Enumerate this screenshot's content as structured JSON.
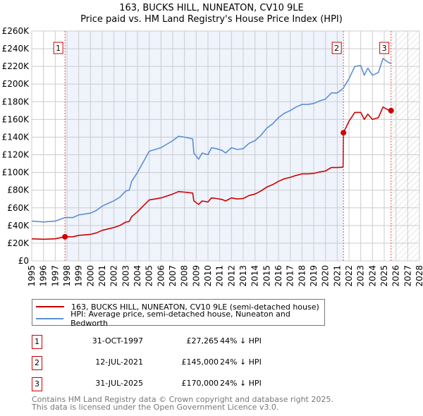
{
  "title_line1": "163, BUCKS HILL, NUNEATON, CV10 9LE",
  "title_line2": "Price paid vs. HM Land Registry's House Price Index (HPI)",
  "colors": {
    "property": "#cc0000",
    "hpi": "#5b8fd4",
    "shade": "#eef3fc",
    "grid": "#cccccc"
  },
  "chart_data": {
    "type": "line",
    "title": "Price paid vs. HM Land Registry's House Price Index (HPI)",
    "xlim": [
      1995,
      2028
    ],
    "ylim": [
      0,
      260000
    ],
    "x_ticks": [
      "1995",
      "1996",
      "1997",
      "1998",
      "1999",
      "2000",
      "2001",
      "2002",
      "2003",
      "2004",
      "2005",
      "2006",
      "2007",
      "2008",
      "2009",
      "2010",
      "2011",
      "2012",
      "2013",
      "2014",
      "2015",
      "2016",
      "2017",
      "2018",
      "2019",
      "2020",
      "2021",
      "2022",
      "2023",
      "2024",
      "2025",
      "2026",
      "2027",
      "2028"
    ],
    "y_ticks": [
      {
        "value": 0,
        "label": "£0"
      },
      {
        "value": 20000,
        "label": "£20K"
      },
      {
        "value": 40000,
        "label": "£40K"
      },
      {
        "value": 60000,
        "label": "£60K"
      },
      {
        "value": 80000,
        "label": "£80K"
      },
      {
        "value": 100000,
        "label": "£100K"
      },
      {
        "value": 120000,
        "label": "£120K"
      },
      {
        "value": 140000,
        "label": "£140K"
      },
      {
        "value": 160000,
        "label": "£160K"
      },
      {
        "value": 180000,
        "label": "£180K"
      },
      {
        "value": 200000,
        "label": "£200K"
      },
      {
        "value": 220000,
        "label": "£220K"
      },
      {
        "value": 240000,
        "label": "£240K"
      },
      {
        "value": 260000,
        "label": "£260K"
      }
    ],
    "grid": true,
    "series": [
      {
        "name": "163, BUCKS HILL, NUNEATON, CV10 9LE (semi-detached house)",
        "color": "#cc0000",
        "x": [
          1995,
          1996,
          1997,
          1997.83,
          1998.5,
          1999,
          2000,
          2000.5,
          2001,
          2001.5,
          2002,
          2002.5,
          2003,
          2003.3,
          2003.5,
          2004,
          2004.5,
          2005,
          2005.5,
          2006,
          2006.5,
          2007,
          2007.5,
          2008,
          2008.7,
          2008.8,
          2009.2,
          2009.5,
          2010,
          2010.3,
          2010.7,
          2011.2,
          2011.5,
          2012,
          2012.5,
          2013,
          2013.5,
          2014,
          2014.5,
          2015,
          2015.5,
          2016,
          2016.5,
          2017,
          2017.5,
          2018,
          2018.5,
          2019,
          2019.5,
          2020,
          2020.5,
          2021,
          2021.5,
          2021.53,
          2022,
          2022.5,
          2023,
          2023.3,
          2023.6,
          2024,
          2024.5,
          2024.9,
          2025.3,
          2025.58
        ],
        "y": [
          25000,
          24500,
          25000,
          27265,
          27300,
          28900,
          30000,
          31700,
          34500,
          36100,
          37800,
          40000,
          43900,
          44500,
          50000,
          55600,
          62300,
          68900,
          70000,
          71200,
          73400,
          75600,
          78400,
          77800,
          76700,
          67800,
          63900,
          67800,
          66700,
          71200,
          70600,
          69500,
          67800,
          71200,
          70000,
          70600,
          73900,
          75600,
          79000,
          83400,
          86200,
          90000,
          92900,
          94500,
          96700,
          98400,
          98400,
          99000,
          100600,
          101700,
          105600,
          105600,
          106000,
          145000,
          158000,
          168000,
          168000,
          160000,
          166000,
          160000,
          162000,
          174000,
          171000,
          170000
        ]
      },
      {
        "name": "HPI: Average price, semi-detached house, Nuneaton and Bedworth",
        "color": "#5b8fd4",
        "x": [
          1995,
          1996,
          1997,
          1997.83,
          1998.5,
          1999,
          2000,
          2000.5,
          2001,
          2001.5,
          2002,
          2002.5,
          2003,
          2003.3,
          2003.5,
          2004,
          2004.5,
          2005,
          2005.5,
          2006,
          2006.5,
          2007,
          2007.5,
          2008,
          2008.7,
          2008.8,
          2009.2,
          2009.5,
          2010,
          2010.3,
          2010.7,
          2011.2,
          2011.5,
          2012,
          2012.5,
          2013,
          2013.5,
          2014,
          2014.5,
          2015,
          2015.5,
          2016,
          2016.5,
          2017,
          2017.5,
          2018,
          2018.5,
          2019,
          2019.5,
          2020,
          2020.5,
          2021,
          2021.5,
          2022,
          2022.5,
          2023,
          2023.3,
          2023.6,
          2024,
          2024.5,
          2024.9,
          2025.3,
          2025.58
        ],
        "y": [
          45000,
          44000,
          45000,
          49000,
          49000,
          52000,
          54000,
          57000,
          62000,
          65000,
          68000,
          72000,
          79000,
          80000,
          90000,
          100000,
          112000,
          124000,
          126000,
          128000,
          132000,
          136000,
          141000,
          140000,
          138000,
          122000,
          115000,
          122000,
          120000,
          128000,
          127000,
          125000,
          122000,
          128000,
          126000,
          127000,
          133000,
          136000,
          142000,
          150000,
          155000,
          162000,
          167000,
          170000,
          174000,
          177000,
          177000,
          178000,
          181000,
          183000,
          190000,
          190000,
          195000,
          206000,
          220000,
          221000,
          210000,
          218000,
          210000,
          213000,
          229000,
          225000,
          223000
        ]
      }
    ],
    "sales": [
      {
        "label": "1",
        "x": 1997.83,
        "y": 27265
      },
      {
        "label": "2",
        "x": 2021.53,
        "y": 145000
      },
      {
        "label": "3",
        "x": 2025.58,
        "y": 170000
      }
    ],
    "legend_placement": "bottom"
  },
  "legend": {
    "property": "163, BUCKS HILL, NUNEATON, CV10 9LE (semi-detached house)",
    "hpi": "HPI: Average price, semi-detached house, Nuneaton and Bedworth"
  },
  "transactions": [
    {
      "num": "1",
      "date": "31-OCT-1997",
      "price": "£27,265",
      "hpi": "44% ↓ HPI"
    },
    {
      "num": "2",
      "date": "12-JUL-2021",
      "price": "£145,000",
      "hpi": "24% ↓ HPI"
    },
    {
      "num": "3",
      "date": "31-JUL-2025",
      "price": "£170,000",
      "hpi": "24% ↓ HPI"
    }
  ],
  "footer_line1": "Contains HM Land Registry data © Crown copyright and database right 2025.",
  "footer_line2": "This data is licensed under the Open Government Licence v3.0."
}
